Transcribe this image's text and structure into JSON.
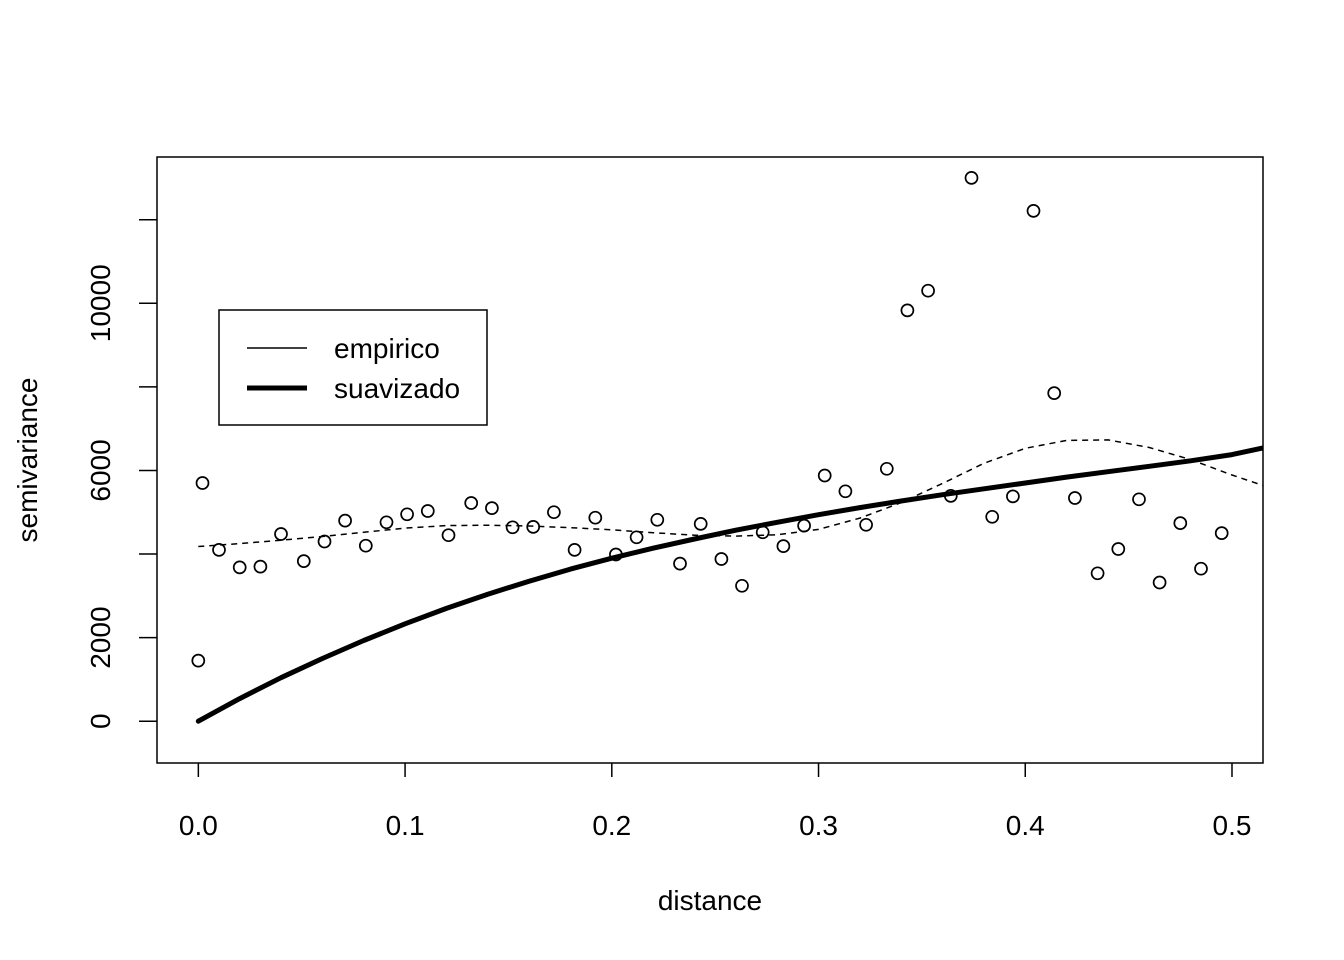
{
  "chart_data": {
    "type": "scatter",
    "title": "",
    "xlabel": "distance",
    "ylabel": "semivariance",
    "xlim": [
      -0.02,
      0.515
    ],
    "ylim": [
      -1000,
      13500
    ],
    "x_ticks": [
      {
        "value": 0.0,
        "label": "0.0"
      },
      {
        "value": 0.1,
        "label": "0.1"
      },
      {
        "value": 0.2,
        "label": "0.2"
      },
      {
        "value": 0.3,
        "label": "0.3"
      },
      {
        "value": 0.4,
        "label": "0.4"
      },
      {
        "value": 0.5,
        "label": "0.5"
      }
    ],
    "y_ticks": [
      {
        "value": 0,
        "label": "0"
      },
      {
        "value": 2000,
        "label": "2000"
      },
      {
        "value": 4000,
        "label": ""
      },
      {
        "value": 6000,
        "label": "6000"
      },
      {
        "value": 8000,
        "label": ""
      },
      {
        "value": 10000,
        "label": "10000"
      },
      {
        "value": 12000,
        "label": ""
      }
    ],
    "grid": false,
    "legend": {
      "placement": "top-left",
      "entries": [
        {
          "label": "empirico",
          "line": "thin"
        },
        {
          "label": "suavizado",
          "line": "thick"
        }
      ]
    },
    "points": [
      [
        0.0,
        1450
      ],
      [
        0.002,
        5700
      ],
      [
        0.01,
        4100
      ],
      [
        0.02,
        3680
      ],
      [
        0.03,
        3700
      ],
      [
        0.04,
        4480
      ],
      [
        0.051,
        3830
      ],
      [
        0.061,
        4300
      ],
      [
        0.071,
        4800
      ],
      [
        0.081,
        4200
      ],
      [
        0.091,
        4760
      ],
      [
        0.101,
        4950
      ],
      [
        0.111,
        5030
      ],
      [
        0.121,
        4450
      ],
      [
        0.132,
        5220
      ],
      [
        0.142,
        5100
      ],
      [
        0.152,
        4640
      ],
      [
        0.162,
        4650
      ],
      [
        0.172,
        5000
      ],
      [
        0.182,
        4100
      ],
      [
        0.192,
        4870
      ],
      [
        0.202,
        3990
      ],
      [
        0.212,
        4400
      ],
      [
        0.222,
        4820
      ],
      [
        0.233,
        3770
      ],
      [
        0.243,
        4720
      ],
      [
        0.253,
        3880
      ],
      [
        0.263,
        3240
      ],
      [
        0.273,
        4520
      ],
      [
        0.283,
        4190
      ],
      [
        0.293,
        4680
      ],
      [
        0.303,
        5880
      ],
      [
        0.313,
        5500
      ],
      [
        0.323,
        4700
      ],
      [
        0.333,
        6040
      ],
      [
        0.343,
        9830
      ],
      [
        0.353,
        10300
      ],
      [
        0.364,
        5390
      ],
      [
        0.374,
        13000
      ],
      [
        0.384,
        4890
      ],
      [
        0.394,
        5380
      ],
      [
        0.404,
        12210
      ],
      [
        0.414,
        7850
      ],
      [
        0.424,
        5340
      ],
      [
        0.435,
        3540
      ],
      [
        0.445,
        4120
      ],
      [
        0.455,
        5310
      ],
      [
        0.465,
        3320
      ],
      [
        0.475,
        4740
      ],
      [
        0.485,
        3650
      ],
      [
        0.495,
        4500
      ]
    ],
    "series": [
      {
        "style": "dashed",
        "x": [
          0.0,
          0.02,
          0.04,
          0.06,
          0.08,
          0.1,
          0.12,
          0.14,
          0.16,
          0.18,
          0.2,
          0.22,
          0.24,
          0.26,
          0.28,
          0.3,
          0.32,
          0.34,
          0.36,
          0.38,
          0.4,
          0.42,
          0.44,
          0.46,
          0.48,
          0.5,
          0.515
        ],
        "y": [
          4180,
          4250,
          4330,
          4420,
          4520,
          4620,
          4680,
          4690,
          4670,
          4630,
          4580,
          4510,
          4450,
          4430,
          4460,
          4590,
          4860,
          5230,
          5690,
          6170,
          6530,
          6720,
          6730,
          6550,
          6260,
          5890,
          5640
        ]
      },
      {
        "style": "thick",
        "x": [
          0.0,
          0.02,
          0.04,
          0.06,
          0.08,
          0.1,
          0.12,
          0.14,
          0.16,
          0.18,
          0.2,
          0.22,
          0.24,
          0.26,
          0.28,
          0.3,
          0.32,
          0.34,
          0.36,
          0.38,
          0.4,
          0.42,
          0.44,
          0.46,
          0.48,
          0.5,
          0.515
        ],
        "y": [
          0,
          540,
          1040,
          1500,
          1930,
          2330,
          2700,
          3040,
          3350,
          3640,
          3900,
          4140,
          4360,
          4570,
          4760,
          4940,
          5110,
          5270,
          5420,
          5560,
          5700,
          5840,
          5970,
          6100,
          6230,
          6380,
          6540
        ]
      }
    ]
  }
}
